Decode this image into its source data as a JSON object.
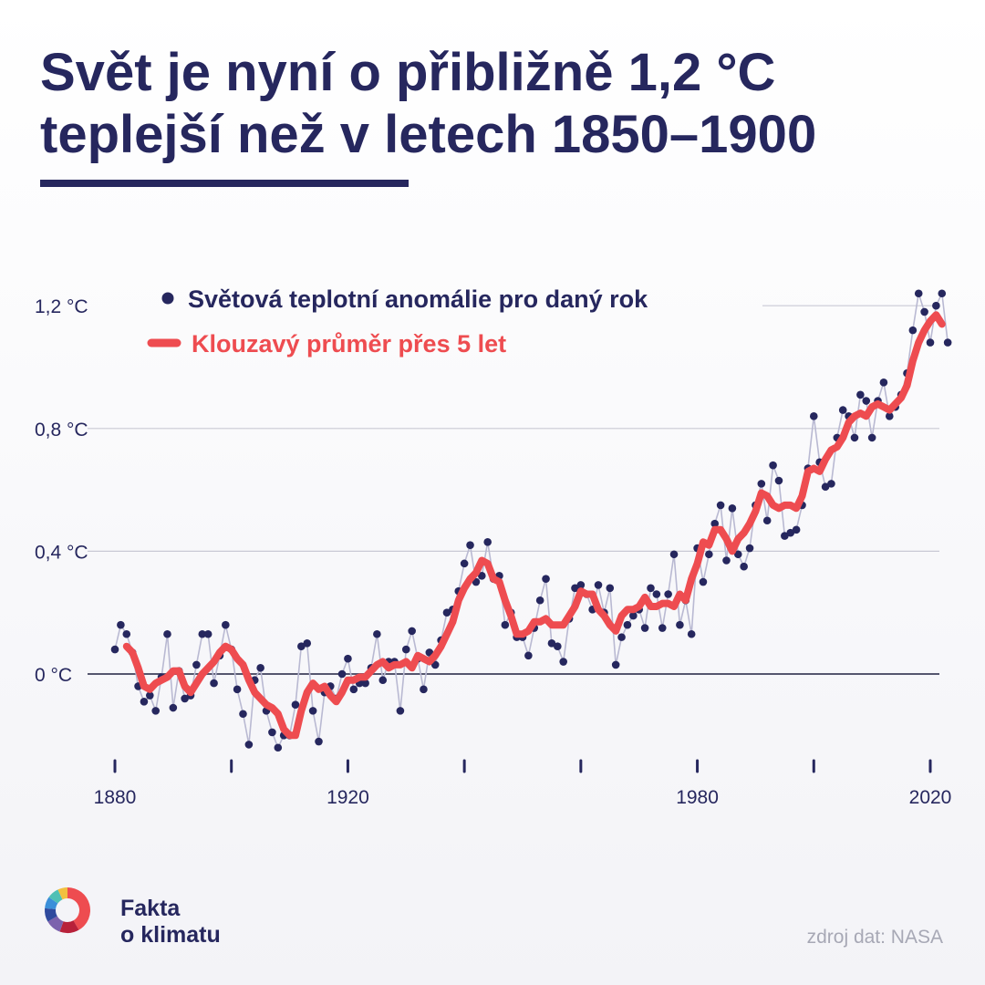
{
  "title": {
    "line1": "Svět je nyní o přibližně 1,2 °C",
    "line2_underlined": "teplejší než v",
    "line2_rest": " letech 1850–1900"
  },
  "footer": {
    "brand_line1": "Fakta",
    "brand_line2": "o klimatu",
    "source": "zdroj dat: NASA"
  },
  "chart_data": {
    "type": "scatter",
    "legend": [
      {
        "label": "Světová teplotní anomálie pro daný rok",
        "color": "#26275e"
      },
      {
        "label": "Klouzavý průměr přes 5 let",
        "color": "#ee4c50"
      }
    ],
    "legend_position": "top-left",
    "y_ticks": [
      {
        "value": 0,
        "label": "0 °C"
      },
      {
        "value": 0.4,
        "label": "0,4 °C"
      },
      {
        "value": 0.8,
        "label": "0,8 °C"
      },
      {
        "value": 1.2,
        "label": "1,2 °C"
      }
    ],
    "x_ticks": [
      1880,
      1900,
      1920,
      1940,
      1960,
      1980,
      2000,
      2020
    ],
    "x_tick_labels": [
      {
        "value": 1880,
        "label": "1880"
      },
      {
        "value": 1920,
        "label": "1920"
      },
      {
        "value": 1980,
        "label": "1980"
      },
      {
        "value": 2020,
        "label": "2020"
      }
    ],
    "xlim": [
      1880,
      2020
    ],
    "ylim": [
      -0.26,
      1.26
    ],
    "grid": true,
    "start_year": 1880,
    "annual_anomaly": [
      0.08,
      0.16,
      0.13,
      0.07,
      -0.04,
      -0.09,
      -0.07,
      -0.12,
      -0.01,
      0.13,
      -0.11,
      0.01,
      -0.08,
      -0.07,
      0.03,
      0.13,
      0.13,
      -0.03,
      0.06,
      0.16,
      0.08,
      -0.05,
      -0.13,
      -0.23,
      -0.02,
      0.02,
      -0.12,
      -0.19,
      -0.24,
      -0.2,
      -0.2,
      -0.1,
      0.09,
      0.1,
      -0.12,
      -0.22,
      -0.06,
      -0.04,
      -0.08,
      0.0,
      0.05,
      -0.05,
      -0.03,
      -0.03,
      0.02,
      0.13,
      -0.02,
      0.04,
      0.04,
      -0.12,
      0.08,
      0.14,
      0.05,
      -0.05,
      0.07,
      0.03,
      0.11,
      0.2,
      0.21,
      0.27,
      0.36,
      0.42,
      0.3,
      0.32,
      0.43,
      0.31,
      0.32,
      0.16,
      0.2,
      0.12,
      0.12,
      0.06,
      0.15,
      0.24,
      0.31,
      0.1,
      0.09,
      0.04,
      0.18,
      0.28,
      0.29,
      0.26,
      0.21,
      0.29,
      0.2,
      0.28,
      0.03,
      0.12,
      0.16,
      0.19,
      0.21,
      0.15,
      0.28,
      0.26,
      0.15,
      0.26,
      0.39,
      0.16,
      0.24,
      0.13,
      0.41,
      0.3,
      0.39,
      0.49,
      0.55,
      0.37,
      0.54,
      0.39,
      0.35,
      0.41,
      0.55,
      0.62,
      0.5,
      0.68,
      0.63,
      0.45,
      0.46,
      0.47,
      0.55,
      0.67,
      0.84,
      0.69,
      0.61,
      0.62,
      0.77,
      0.86,
      0.84,
      0.77,
      0.91,
      0.89,
      0.77,
      0.89,
      0.95,
      0.84,
      0.87,
      0.91,
      0.98,
      1.12,
      1.24,
      1.18,
      1.08,
      1.2,
      1.24,
      1.08
    ],
    "moving_average_5yr": {
      "start_year": 1882,
      "values": [
        0.09,
        0.07,
        0.02,
        -0.04,
        -0.05,
        -0.03,
        -0.02,
        -0.01,
        0.01,
        0.01,
        -0.04,
        -0.06,
        -0.03,
        0.0,
        0.02,
        0.04,
        0.07,
        0.09,
        0.08,
        0.05,
        0.03,
        -0.02,
        -0.06,
        -0.08,
        -0.1,
        -0.11,
        -0.13,
        -0.18,
        -0.2,
        -0.2,
        -0.12,
        -0.06,
        -0.03,
        -0.05,
        -0.04,
        -0.07,
        -0.09,
        -0.06,
        -0.02,
        -0.02,
        -0.01,
        -0.01,
        0.01,
        0.03,
        0.04,
        0.02,
        0.03,
        0.03,
        0.04,
        0.02,
        0.06,
        0.05,
        0.04,
        0.06,
        0.09,
        0.13,
        0.17,
        0.24,
        0.28,
        0.31,
        0.33,
        0.37,
        0.36,
        0.31,
        0.3,
        0.24,
        0.19,
        0.13,
        0.13,
        0.14,
        0.17,
        0.17,
        0.18,
        0.16,
        0.16,
        0.16,
        0.19,
        0.22,
        0.27,
        0.26,
        0.26,
        0.21,
        0.19,
        0.16,
        0.14,
        0.19,
        0.21,
        0.21,
        0.22,
        0.25,
        0.22,
        0.22,
        0.23,
        0.23,
        0.22,
        0.26,
        0.24,
        0.31,
        0.36,
        0.43,
        0.42,
        0.47,
        0.47,
        0.44,
        0.4,
        0.44,
        0.46,
        0.49,
        0.53,
        0.59,
        0.58,
        0.55,
        0.54,
        0.55,
        0.55,
        0.54,
        0.58,
        0.66,
        0.67,
        0.66,
        0.7,
        0.73,
        0.74,
        0.77,
        0.82,
        0.84,
        0.85,
        0.84,
        0.87,
        0.88,
        0.87,
        0.86,
        0.88,
        0.9,
        0.94,
        1.02,
        1.08,
        1.12,
        1.15,
        1.17,
        1.14
      ]
    }
  }
}
